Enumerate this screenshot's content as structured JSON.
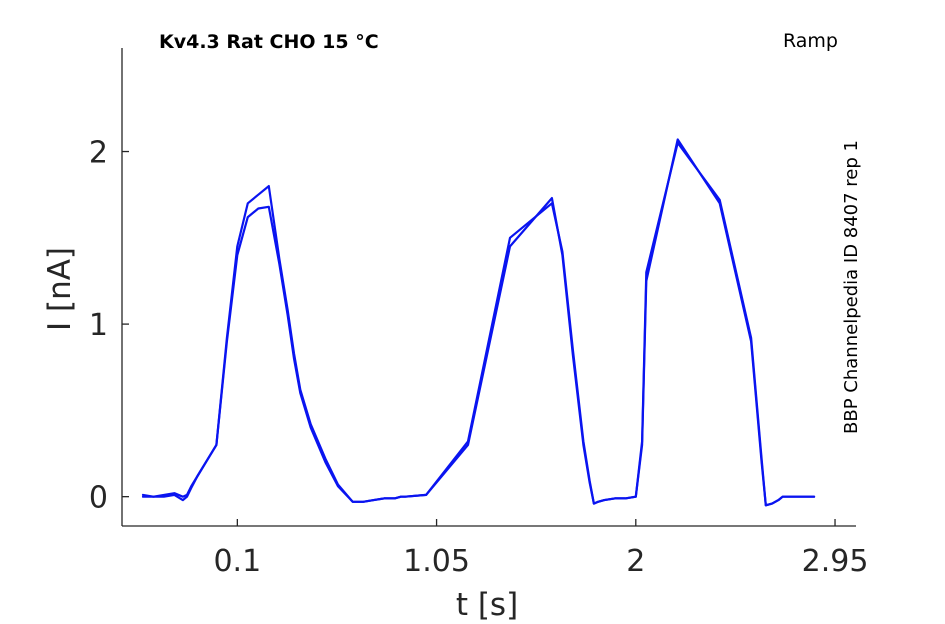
{
  "chart_data": {
    "type": "line",
    "title": "Kv4.3  Rat  CHO  15 °C",
    "protocol_label": "Ramp",
    "side_note": "BBP Channelpedia ID 8407 rep 1",
    "xlabel": "t [s]",
    "ylabel": "I [nA]",
    "xlim": [
      -0.45,
      3.05
    ],
    "ylim": [
      -0.17,
      2.6
    ],
    "x_ticks": [
      0.1,
      1.05,
      2,
      2.95
    ],
    "x_tick_labels": [
      "0.1",
      "1.05",
      "2",
      "2.95"
    ],
    "y_ticks": [
      0,
      1,
      2
    ],
    "y_tick_labels": [
      "0",
      "1",
      "2"
    ],
    "grid": false,
    "line_color": "#0a14f0",
    "series": [
      {
        "x": [
          -0.35,
          -0.3,
          -0.25,
          -0.2,
          -0.16,
          -0.14,
          -0.12,
          -0.09,
          -0.05,
          0.0,
          0.05,
          0.1,
          0.15,
          0.2,
          0.25,
          0.3,
          0.34,
          0.37,
          0.4,
          0.45,
          0.52,
          0.58,
          0.65,
          0.7,
          0.75,
          0.8,
          0.85,
          0.88,
          0.9,
          1.0,
          1.2,
          1.4,
          1.6,
          1.65,
          1.7,
          1.75,
          1.78,
          1.8,
          1.82,
          1.85,
          1.9,
          1.95,
          2.0,
          2.03,
          2.05,
          2.2,
          2.4,
          2.55,
          2.6,
          2.62,
          2.65,
          2.68,
          2.7,
          2.72,
          2.75,
          2.85
        ],
        "y": [
          0.0,
          0.0,
          0.01,
          0.02,
          0.0,
          0.01,
          0.06,
          0.12,
          0.2,
          0.3,
          0.9,
          1.4,
          1.62,
          1.67,
          1.68,
          1.35,
          1.05,
          0.8,
          0.6,
          0.4,
          0.2,
          0.06,
          -0.03,
          -0.03,
          -0.02,
          -0.01,
          -0.01,
          0.0,
          0.0,
          0.01,
          0.3,
          1.45,
          1.73,
          1.4,
          0.82,
          0.3,
          0.08,
          -0.04,
          -0.03,
          -0.02,
          -0.01,
          -0.01,
          0.0,
          0.3,
          1.25,
          2.07,
          1.7,
          0.9,
          0.2,
          -0.05,
          -0.04,
          -0.02,
          0.0,
          0.0,
          0.0,
          0.0
        ]
      },
      {
        "x": [
          -0.35,
          -0.3,
          -0.25,
          -0.2,
          -0.16,
          -0.14,
          -0.12,
          -0.09,
          -0.05,
          0.0,
          0.05,
          0.1,
          0.15,
          0.2,
          0.25,
          0.3,
          0.34,
          0.37,
          0.4,
          0.45,
          0.52,
          0.58,
          0.65,
          0.7,
          0.75,
          0.8,
          0.85,
          0.88,
          0.9,
          1.0,
          1.2,
          1.4,
          1.6,
          1.65,
          1.7,
          1.75,
          1.78,
          1.8,
          1.82,
          1.85,
          1.9,
          1.95,
          2.0,
          2.03,
          2.05,
          2.2,
          2.4,
          2.55,
          2.6,
          2.62,
          2.65,
          2.68,
          2.7,
          2.72,
          2.75,
          2.85
        ],
        "y": [
          0.01,
          0.0,
          0.0,
          0.01,
          -0.02,
          0.0,
          0.05,
          0.12,
          0.2,
          0.3,
          0.92,
          1.45,
          1.7,
          1.75,
          1.8,
          1.38,
          1.08,
          0.83,
          0.62,
          0.42,
          0.22,
          0.07,
          -0.03,
          -0.03,
          -0.02,
          -0.01,
          -0.01,
          0.0,
          0.0,
          0.01,
          0.32,
          1.5,
          1.7,
          1.42,
          0.85,
          0.32,
          0.09,
          -0.04,
          -0.03,
          -0.02,
          -0.01,
          -0.01,
          0.0,
          0.32,
          1.3,
          2.05,
          1.72,
          0.92,
          0.22,
          -0.05,
          -0.04,
          -0.02,
          0.0,
          0.0,
          0.0,
          0.0
        ]
      }
    ]
  }
}
